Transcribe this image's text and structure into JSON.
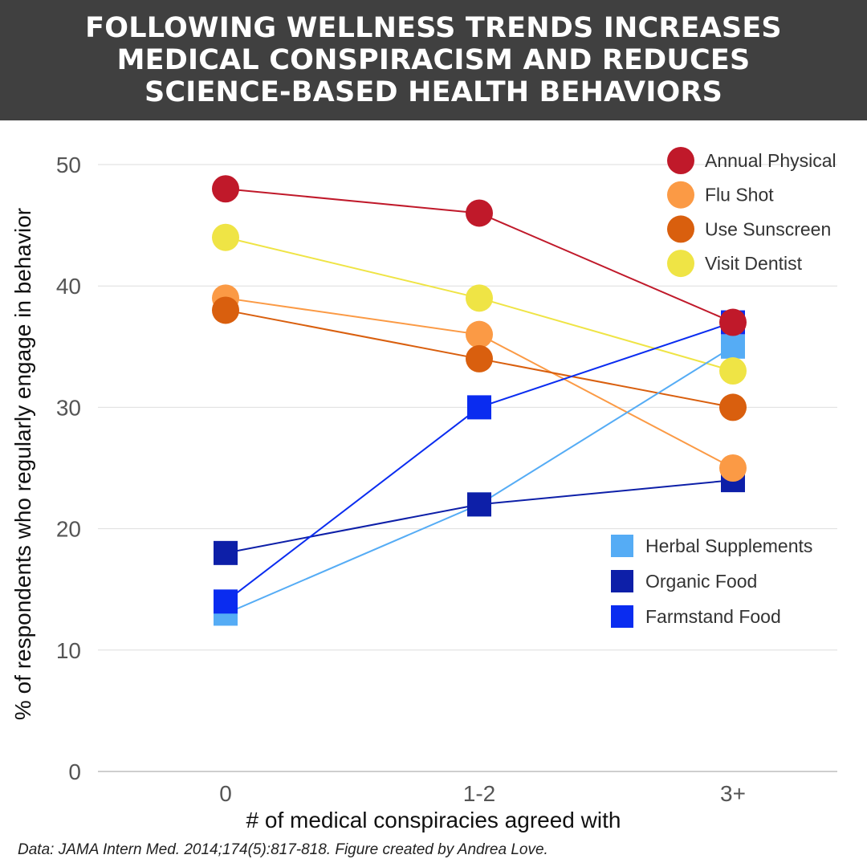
{
  "header": {
    "title_lines": [
      "FOLLOWING WELLNESS TRENDS INCREASES",
      "MEDICAL CONSPIRACISM AND REDUCES",
      "SCIENCE-BASED HEALTH BEHAVIORS"
    ]
  },
  "source_note": "Data: JAMA Intern Med. 2014;174(5):817-818. Figure created by Andrea Love.",
  "chart_data": {
    "type": "line",
    "xlabel": "# of medical conspiracies agreed with",
    "ylabel": "% of respondents who regularly engage in behavior",
    "categories": [
      "0",
      "1-2",
      "3+"
    ],
    "ylim": [
      0,
      50
    ],
    "yticks": [
      0,
      10,
      20,
      30,
      40,
      50
    ],
    "grid": true,
    "legends": [
      {
        "placement": "top-right",
        "series": [
          "Annual Physical",
          "Flu Shot",
          "Use Sunscreen",
          "Visit Dentist"
        ]
      },
      {
        "placement": "middle-right",
        "series": [
          "Herbal Supplements",
          "Organic Food",
          "Farmstand Food"
        ]
      }
    ],
    "series": [
      {
        "name": "Annual Physical",
        "values": [
          48,
          46,
          37
        ],
        "color": "#c0192a",
        "marker": "circle"
      },
      {
        "name": "Flu Shot",
        "values": [
          39,
          36,
          25
        ],
        "color": "#fb9a45",
        "marker": "circle"
      },
      {
        "name": "Use Sunscreen",
        "values": [
          38,
          34,
          30
        ],
        "color": "#d95f0e",
        "marker": "circle"
      },
      {
        "name": "Visit Dentist",
        "values": [
          44,
          39,
          33
        ],
        "color": "#efe445",
        "marker": "circle"
      },
      {
        "name": "Herbal Supplements",
        "values": [
          13,
          22,
          35
        ],
        "color": "#55acf5",
        "marker": "square"
      },
      {
        "name": "Organic Food",
        "values": [
          18,
          22,
          24
        ],
        "color": "#0d1fa8",
        "marker": "square"
      },
      {
        "name": "Farmstand Food",
        "values": [
          14,
          30,
          37
        ],
        "color": "#0a2cf0",
        "marker": "square"
      }
    ]
  }
}
